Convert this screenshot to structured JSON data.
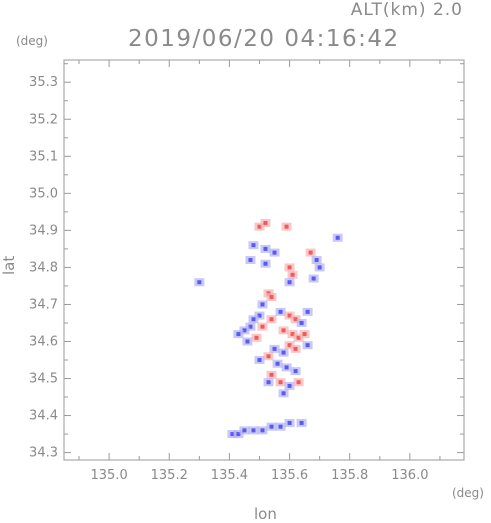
{
  "header": {
    "altitude": "ALT(km) 2.0",
    "timestamp": "2019/06/20 04:16:42"
  },
  "chart_data": {
    "type": "heatmap",
    "title": "2019/06/20 04:16:42",
    "subtitle": "ALT(km) 2.0",
    "xlabel": "lon",
    "ylabel": "lat",
    "xunit": "(deg)",
    "yunit": "(deg)",
    "xlim": [
      134.85,
      136.18
    ],
    "ylim": [
      34.28,
      35.36
    ],
    "xticks": [
      "135.0",
      "135.2",
      "135.4",
      "135.6",
      "135.8",
      "136.0"
    ],
    "yticks": [
      "34.3",
      "34.4",
      "34.5",
      "34.6",
      "34.7",
      "34.8",
      "34.9",
      "35.0",
      "35.1",
      "35.2",
      "35.3"
    ],
    "colors": {
      "positive": "#f05a5a",
      "negative": "#5a5af0",
      "weak_positive": "#f7b0b0",
      "weak_negative": "#b0b0f7"
    },
    "cells": [
      {
        "lon": 135.5,
        "lat": 34.91,
        "v": 1
      },
      {
        "lon": 135.52,
        "lat": 34.92,
        "v": 1
      },
      {
        "lon": 135.59,
        "lat": 34.91,
        "v": 1
      },
      {
        "lon": 135.48,
        "lat": 34.86,
        "v": -1
      },
      {
        "lon": 135.52,
        "lat": 34.85,
        "v": -1
      },
      {
        "lon": 135.55,
        "lat": 34.84,
        "v": -1
      },
      {
        "lon": 135.47,
        "lat": 34.82,
        "v": -1
      },
      {
        "lon": 135.52,
        "lat": 34.81,
        "v": -1
      },
      {
        "lon": 135.6,
        "lat": 34.8,
        "v": 1
      },
      {
        "lon": 135.61,
        "lat": 34.78,
        "v": 1
      },
      {
        "lon": 135.6,
        "lat": 34.76,
        "v": -1
      },
      {
        "lon": 135.67,
        "lat": 34.84,
        "v": 1
      },
      {
        "lon": 135.69,
        "lat": 34.82,
        "v": -1
      },
      {
        "lon": 135.7,
        "lat": 34.8,
        "v": -1
      },
      {
        "lon": 135.68,
        "lat": 34.77,
        "v": -1
      },
      {
        "lon": 135.76,
        "lat": 34.88,
        "v": -1
      },
      {
        "lon": 135.3,
        "lat": 34.76,
        "v": -1
      },
      {
        "lon": 135.53,
        "lat": 34.73,
        "v": 1
      },
      {
        "lon": 135.54,
        "lat": 34.72,
        "v": 1
      },
      {
        "lon": 135.51,
        "lat": 34.7,
        "v": -1
      },
      {
        "lon": 135.5,
        "lat": 34.67,
        "v": -1
      },
      {
        "lon": 135.48,
        "lat": 34.66,
        "v": -1
      },
      {
        "lon": 135.47,
        "lat": 34.64,
        "v": -1
      },
      {
        "lon": 135.45,
        "lat": 34.63,
        "v": -1
      },
      {
        "lon": 135.43,
        "lat": 34.62,
        "v": -1
      },
      {
        "lon": 135.46,
        "lat": 34.6,
        "v": -1
      },
      {
        "lon": 135.49,
        "lat": 34.61,
        "v": 1
      },
      {
        "lon": 135.51,
        "lat": 34.64,
        "v": 1
      },
      {
        "lon": 135.54,
        "lat": 34.66,
        "v": 1
      },
      {
        "lon": 135.57,
        "lat": 34.68,
        "v": -1
      },
      {
        "lon": 135.6,
        "lat": 34.67,
        "v": 1
      },
      {
        "lon": 135.62,
        "lat": 34.66,
        "v": 1
      },
      {
        "lon": 135.64,
        "lat": 34.65,
        "v": -1
      },
      {
        "lon": 135.66,
        "lat": 34.68,
        "v": -1
      },
      {
        "lon": 135.58,
        "lat": 34.63,
        "v": 1
      },
      {
        "lon": 135.61,
        "lat": 34.62,
        "v": 1
      },
      {
        "lon": 135.63,
        "lat": 34.61,
        "v": 1
      },
      {
        "lon": 135.65,
        "lat": 34.62,
        "v": 1
      },
      {
        "lon": 135.6,
        "lat": 34.59,
        "v": 1
      },
      {
        "lon": 135.62,
        "lat": 34.58,
        "v": 1
      },
      {
        "lon": 135.58,
        "lat": 34.57,
        "v": -1
      },
      {
        "lon": 135.55,
        "lat": 34.58,
        "v": -1
      },
      {
        "lon": 135.53,
        "lat": 34.56,
        "v": 1
      },
      {
        "lon": 135.56,
        "lat": 34.54,
        "v": -1
      },
      {
        "lon": 135.59,
        "lat": 34.53,
        "v": -1
      },
      {
        "lon": 135.62,
        "lat": 34.52,
        "v": -1
      },
      {
        "lon": 135.54,
        "lat": 34.51,
        "v": 1
      },
      {
        "lon": 135.53,
        "lat": 34.49,
        "v": -1
      },
      {
        "lon": 135.57,
        "lat": 34.49,
        "v": 1
      },
      {
        "lon": 135.6,
        "lat": 34.48,
        "v": -1
      },
      {
        "lon": 135.63,
        "lat": 34.49,
        "v": 1
      },
      {
        "lon": 135.58,
        "lat": 34.46,
        "v": -1
      },
      {
        "lon": 135.5,
        "lat": 34.55,
        "v": -1
      },
      {
        "lon": 135.66,
        "lat": 34.59,
        "v": -1
      },
      {
        "lon": 135.41,
        "lat": 34.35,
        "v": -1
      },
      {
        "lon": 135.43,
        "lat": 34.35,
        "v": -1
      },
      {
        "lon": 135.45,
        "lat": 34.36,
        "v": -1
      },
      {
        "lon": 135.48,
        "lat": 34.36,
        "v": -1
      },
      {
        "lon": 135.51,
        "lat": 34.36,
        "v": -1
      },
      {
        "lon": 135.54,
        "lat": 34.37,
        "v": -1
      },
      {
        "lon": 135.57,
        "lat": 34.37,
        "v": -1
      },
      {
        "lon": 135.6,
        "lat": 34.38,
        "v": -1
      },
      {
        "lon": 135.64,
        "lat": 34.38,
        "v": -1
      }
    ]
  }
}
